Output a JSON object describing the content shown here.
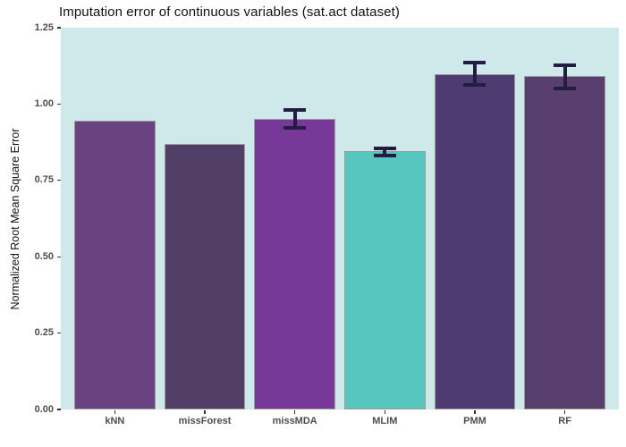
{
  "chart_data": {
    "type": "bar",
    "title": "Imputation error of continuous variables (sat.act dataset)",
    "xlabel": "",
    "ylabel": "Normalized Root Mean Square Error",
    "categories": [
      "kNN",
      "missForest",
      "missMDA",
      "MLIM",
      "PMM",
      "RF"
    ],
    "values": [
      0.945,
      0.868,
      0.951,
      0.845,
      1.098,
      1.091
    ],
    "errors": [
      null,
      null,
      {
        "low": 0.921,
        "high": 0.98
      },
      {
        "low": 0.83,
        "high": 0.854
      },
      {
        "low": 1.064,
        "high": 1.135
      },
      {
        "low": 1.052,
        "high": 1.127
      }
    ],
    "bar_colors": [
      "#6b4280",
      "#523f68",
      "#76399a",
      "#57c6bf",
      "#4e3b72",
      "#593f6d"
    ],
    "ylim": [
      0,
      1.25
    ],
    "yticks": [
      "0.00",
      "0.25",
      "0.50",
      "0.75",
      "1.00",
      "1.25"
    ],
    "grid": false,
    "legend_position": "none",
    "colors": {
      "plot_background": "#cfe9ea",
      "figure_background": "#ffffff",
      "bar_border": "#9b9b9b",
      "errorbar": "#231d42",
      "axis_text": "#4d4d4d",
      "title_text": "#111111"
    }
  }
}
